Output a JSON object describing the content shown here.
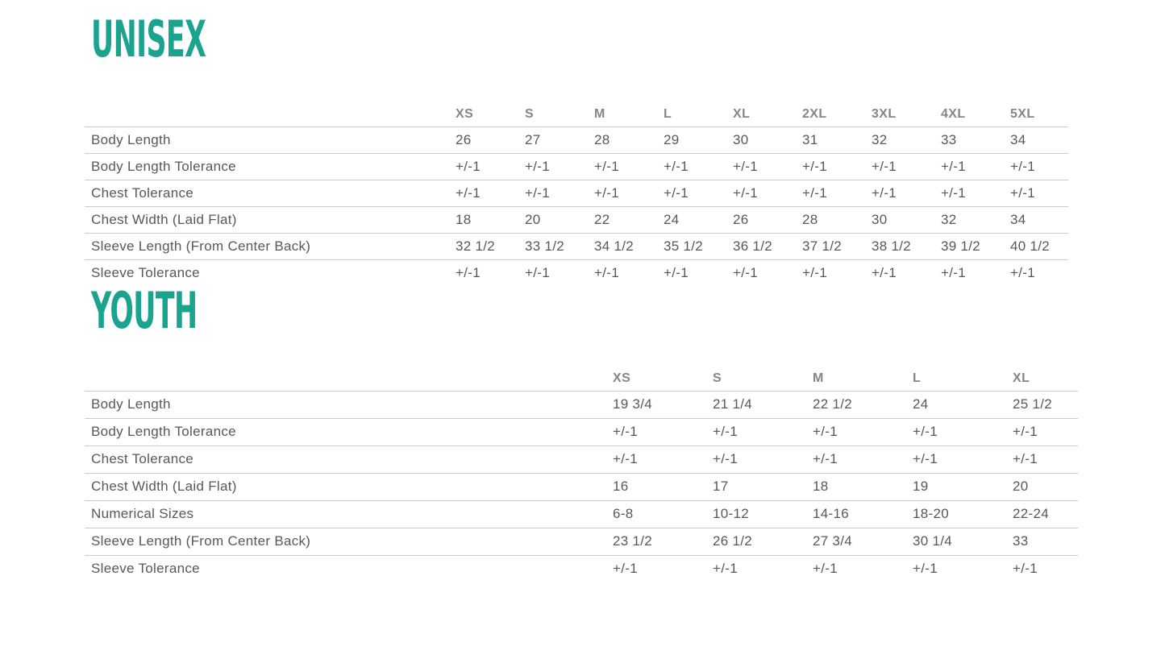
{
  "colors": {
    "accent": "#1aa38f",
    "body_text": "#57585a",
    "header_text": "#85868a",
    "divider": "#c9cacb"
  },
  "sections": [
    {
      "title": "UNISEX",
      "columns": [
        "XS",
        "S",
        "M",
        "L",
        "XL",
        "2XL",
        "3XL",
        "4XL",
        "5XL"
      ],
      "rows": [
        {
          "label": "Body Length",
          "values": [
            "26",
            "27",
            "28",
            "29",
            "30",
            "31",
            "32",
            "33",
            "34"
          ]
        },
        {
          "label": "Body Length Tolerance",
          "values": [
            "+/-1",
            "+/-1",
            "+/-1",
            "+/-1",
            "+/-1",
            "+/-1",
            "+/-1",
            "+/-1",
            "+/-1"
          ]
        },
        {
          "label": "Chest Tolerance",
          "values": [
            "+/-1",
            "+/-1",
            "+/-1",
            "+/-1",
            "+/-1",
            "+/-1",
            "+/-1",
            "+/-1",
            "+/-1"
          ]
        },
        {
          "label": "Chest Width (Laid Flat)",
          "values": [
            "18",
            "20",
            "22",
            "24",
            "26",
            "28",
            "30",
            "32",
            "34"
          ]
        },
        {
          "label": "Sleeve Length (From Center Back)",
          "values": [
            "32 1/2",
            "33 1/2",
            "34 1/2",
            "35 1/2",
            "36 1/2",
            "37 1/2",
            "38 1/2",
            "39 1/2",
            "40 1/2"
          ]
        },
        {
          "label": "Sleeve Tolerance",
          "values": [
            "+/-1",
            "+/-1",
            "+/-1",
            "+/-1",
            "+/-1",
            "+/-1",
            "+/-1",
            "+/-1",
            "+/-1"
          ]
        }
      ]
    },
    {
      "title": "YOUTH",
      "columns": [
        "XS",
        "S",
        "M",
        "L",
        "XL"
      ],
      "rows": [
        {
          "label": "Body Length",
          "values": [
            "19 3/4",
            "21 1/4",
            "22 1/2",
            "24",
            "25 1/2"
          ]
        },
        {
          "label": "Body Length Tolerance",
          "values": [
            "+/-1",
            "+/-1",
            "+/-1",
            "+/-1",
            "+/-1"
          ]
        },
        {
          "label": "Chest Tolerance",
          "values": [
            "+/-1",
            "+/-1",
            "+/-1",
            "+/-1",
            "+/-1"
          ]
        },
        {
          "label": "Chest Width (Laid Flat)",
          "values": [
            "16",
            "17",
            "18",
            "19",
            "20"
          ]
        },
        {
          "label": "Numerical Sizes",
          "values": [
            "6-8",
            "10-12",
            "14-16",
            "18-20",
            "22-24"
          ]
        },
        {
          "label": "Sleeve Length (From Center Back)",
          "values": [
            "23 1/2",
            "26 1/2",
            "27 3/4",
            "30 1/4",
            "33"
          ]
        },
        {
          "label": "Sleeve Tolerance",
          "values": [
            "+/-1",
            "+/-1",
            "+/-1",
            "+/-1",
            "+/-1"
          ]
        }
      ]
    }
  ]
}
